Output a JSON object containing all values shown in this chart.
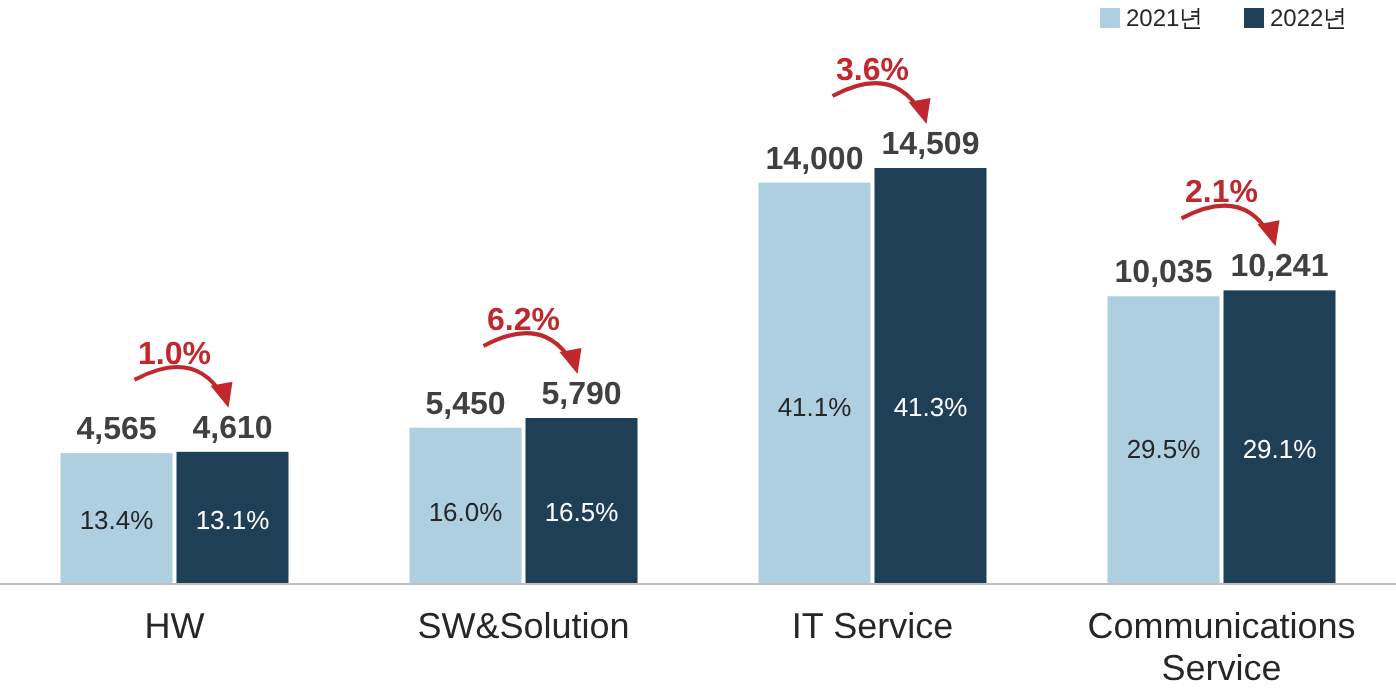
{
  "chart_data": {
    "type": "bar",
    "categories": [
      "HW",
      "SW&Solution",
      "IT Service",
      "Communications Service"
    ],
    "series": [
      {
        "name": "2021년",
        "color": "#aecfe0",
        "values": [
          4565,
          5450,
          14000,
          10035
        ],
        "value_labels": [
          "4,565",
          "5,450",
          "14,000",
          "10,035"
        ]
      },
      {
        "name": "2022년",
        "color": "#1f3f57",
        "values": [
          4610,
          5790,
          14509,
          10241
        ],
        "value_labels": [
          "4,610",
          "5,790",
          "14,509",
          "10,241"
        ]
      }
    ],
    "annotations": [
      "1.0%",
      {
        "text": "13.4%",
        "x": "HW",
        "y": 2270
      },
      {
        "text": "13.1%",
        "x": "HW",
        "y": 2270
      },
      "6.2%",
      {
        "text": "16.0%",
        "x": "SW&Solution",
        "y": 2540
      },
      {
        "text": "16.5%",
        "x": "SW&Solution",
        "y": 2540
      },
      "3.6%",
      {
        "text": "41.1%",
        "x": "IT Service",
        "y": 6220
      },
      {
        "text": "41.3%",
        "x": "IT Service",
        "y": 6220
      },
      "2.1%",
      {
        "text": "29.5%",
        "x": "Communications Service",
        "y": 4750
      },
      {
        "text": "29.1%",
        "x": "Communications Service",
        "y": 4750
      }
    ],
    "legend": "top right"
  }
}
